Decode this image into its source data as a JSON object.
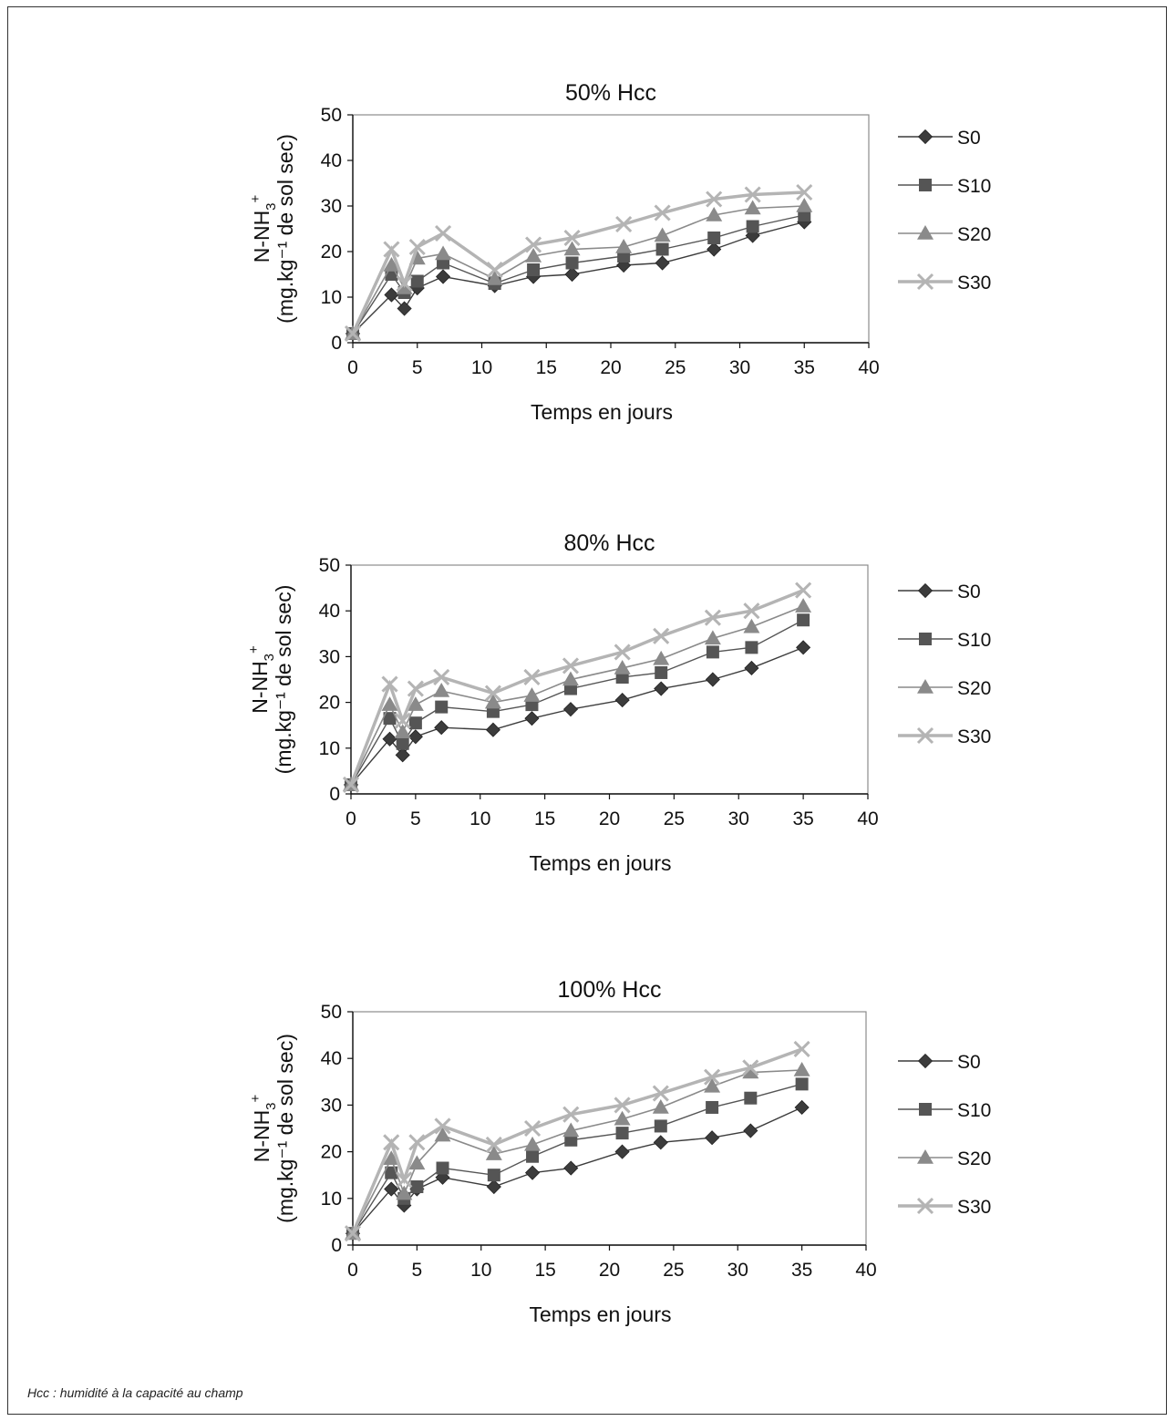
{
  "footnote": "Hcc : humidité à la capacité au champ",
  "colors": {
    "S0": "#3c3c3c",
    "S10": "#555555",
    "S20": "#8a8a8a",
    "S30": "#b4b4b4"
  },
  "chart_data": [
    {
      "type": "line",
      "title": "50% Hcc",
      "xlabel": "Temps en jours",
      "ylabel_line1": "N-NH",
      "ylabel_sub": "3",
      "ylabel_sup": "+",
      "ylabel_line2": "(mg.kg⁻¹ de sol sec)",
      "xlim": [
        0,
        40
      ],
      "ylim": [
        0,
        50
      ],
      "xticks": [
        "0",
        "5",
        "10",
        "15",
        "20",
        "25",
        "30",
        "35",
        "40"
      ],
      "yticks": [
        "0",
        "10",
        "20",
        "30",
        "40",
        "50"
      ],
      "x": [
        0,
        3,
        4,
        5,
        7,
        11,
        14,
        17,
        21,
        24,
        28,
        31,
        35
      ],
      "series": [
        {
          "name": "S0",
          "marker": "diamond",
          "values": [
            2,
            10.5,
            7.5,
            12,
            14.5,
            12.5,
            14.5,
            15,
            17,
            17.5,
            20.5,
            23.5,
            26.5
          ]
        },
        {
          "name": "S10",
          "marker": "square",
          "values": [
            2,
            15,
            11,
            13.5,
            17.5,
            13,
            16,
            17.5,
            19,
            20.5,
            23,
            25.5,
            28
          ]
        },
        {
          "name": "S20",
          "marker": "triangle",
          "values": [
            2,
            17,
            12,
            18.5,
            19.5,
            14,
            19,
            20.5,
            21,
            23.5,
            28,
            29.5,
            30
          ]
        },
        {
          "name": "S30",
          "marker": "cross",
          "values": [
            2,
            20.5,
            13,
            21,
            24,
            16,
            21.5,
            23,
            26,
            28.5,
            31.5,
            32.5,
            33
          ]
        }
      ]
    },
    {
      "type": "line",
      "title": "80% Hcc",
      "xlabel": "Temps en jours",
      "ylabel_line1": "N-NH",
      "ylabel_sub": "3",
      "ylabel_sup": "+",
      "ylabel_line2": "(mg.kg⁻¹ de sol sec)",
      "xlim": [
        0,
        40
      ],
      "ylim": [
        0,
        50
      ],
      "xticks": [
        "0",
        "5",
        "10",
        "15",
        "20",
        "25",
        "30",
        "35",
        "40"
      ],
      "yticks": [
        "0",
        "10",
        "20",
        "30",
        "40",
        "50"
      ],
      "x": [
        0,
        3,
        4,
        5,
        7,
        11,
        14,
        17,
        21,
        24,
        28,
        31,
        35
      ],
      "series": [
        {
          "name": "S0",
          "marker": "diamond",
          "values": [
            2,
            12,
            8.5,
            12.5,
            14.5,
            14,
            16.5,
            18.5,
            20.5,
            23,
            25,
            27.5,
            32
          ]
        },
        {
          "name": "S10",
          "marker": "square",
          "values": [
            2,
            16.5,
            11,
            15.5,
            19,
            18,
            19.5,
            23,
            25.5,
            26.5,
            31,
            32,
            38
          ]
        },
        {
          "name": "S20",
          "marker": "triangle",
          "values": [
            2,
            19.5,
            13.5,
            19.5,
            22.5,
            20,
            21.5,
            25,
            27.5,
            29.5,
            34,
            36.5,
            41
          ]
        },
        {
          "name": "S30",
          "marker": "cross",
          "values": [
            2,
            24,
            16,
            23,
            25.5,
            22,
            25.5,
            28,
            31,
            34.5,
            38.5,
            40,
            44.5
          ]
        }
      ]
    },
    {
      "type": "line",
      "title": "100% Hcc",
      "xlabel": "Temps en jours",
      "ylabel_line1": "N-NH",
      "ylabel_sub": "3",
      "ylabel_sup": "+",
      "ylabel_line2": "(mg.kg⁻¹ de sol sec)",
      "xlim": [
        0,
        40
      ],
      "ylim": [
        0,
        50
      ],
      "xticks": [
        "0",
        "5",
        "10",
        "15",
        "20",
        "25",
        "30",
        "35",
        "40"
      ],
      "yticks": [
        "0",
        "10",
        "20",
        "30",
        "40",
        "50"
      ],
      "x": [
        0,
        3,
        4,
        5,
        7,
        11,
        14,
        17,
        21,
        24,
        28,
        31,
        35
      ],
      "series": [
        {
          "name": "S0",
          "marker": "diamond",
          "values": [
            2.5,
            12,
            8.5,
            12,
            14.5,
            12.5,
            15.5,
            16.5,
            20,
            22,
            23,
            24.5,
            29.5
          ]
        },
        {
          "name": "S10",
          "marker": "square",
          "values": [
            2.5,
            15.5,
            10,
            12.5,
            16.5,
            15,
            19,
            22.5,
            24,
            25.5,
            29.5,
            31.5,
            34.5
          ]
        },
        {
          "name": "S20",
          "marker": "triangle",
          "values": [
            2.5,
            18.5,
            11,
            17.5,
            23.5,
            19.5,
            21.5,
            24.5,
            27,
            29.5,
            34,
            37,
            37.5
          ]
        },
        {
          "name": "S30",
          "marker": "cross",
          "values": [
            2.5,
            22,
            14,
            22,
            25.5,
            21.5,
            25,
            28,
            30,
            32.5,
            36,
            38,
            42
          ]
        }
      ]
    }
  ]
}
